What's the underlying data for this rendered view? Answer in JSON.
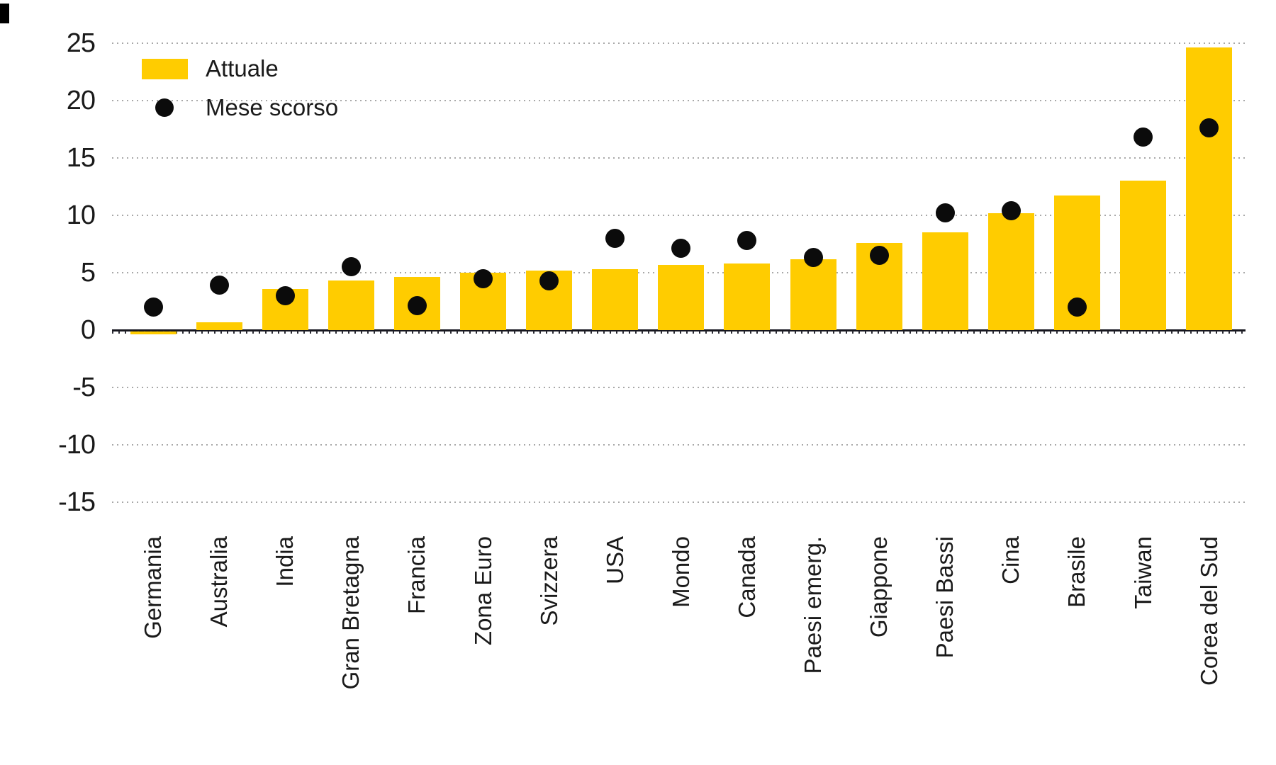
{
  "chart_data": {
    "type": "bar",
    "title": "",
    "xlabel": "",
    "ylabel": "",
    "categories": [
      "Germania",
      "Australia",
      "India",
      "Gran Bretagna",
      "Francia",
      "Zona Euro",
      "Svizzera",
      "USA",
      "Mondo",
      "Canada",
      "Paesi emerg.",
      "Giappone",
      "Paesi Bassi",
      "Cina",
      "Brasile",
      "Taiwan",
      "Corea del Sud"
    ],
    "series": [
      {
        "name": "Attuale",
        "type": "bar",
        "color": "#FFCC00",
        "values": [
          -0.3,
          0.7,
          3.6,
          4.3,
          4.6,
          5.0,
          5.2,
          5.3,
          5.7,
          5.8,
          6.2,
          7.6,
          8.5,
          10.2,
          11.7,
          13.0,
          24.6
        ]
      },
      {
        "name": "Mese scorso",
        "type": "scatter",
        "color": "#0b0b0b",
        "values": [
          2.0,
          3.9,
          3.0,
          5.5,
          2.1,
          4.5,
          4.3,
          8.0,
          7.1,
          7.8,
          6.3,
          6.5,
          10.2,
          10.4,
          2.0,
          16.8,
          17.6
        ]
      }
    ],
    "ylim": [
      -17.5,
      27
    ],
    "yticks": [
      25,
      20,
      15,
      10,
      5,
      0,
      -5,
      -10,
      -15
    ],
    "grid": "horizontal-dotted",
    "zero_line": "solid-dark",
    "legend_position": "top-left",
    "x_labels_rotation_deg": 90
  },
  "legend": {
    "items": [
      {
        "label": "Attuale",
        "marker": "square",
        "color": "#FFCC00"
      },
      {
        "label": "Mese scorso",
        "marker": "dot",
        "color": "#0b0b0b"
      }
    ]
  },
  "axes": {
    "y_tick_labels": [
      "25",
      "20",
      "15",
      "10",
      "5",
      "0",
      "-5",
      "-10",
      "-15"
    ]
  },
  "colors": {
    "bar": "#FFCC00",
    "dot": "#0b0b0b",
    "text": "#1a1a1a",
    "grid": "#a8a8a8",
    "zero_line": "#16161e",
    "background": "#ffffff"
  }
}
